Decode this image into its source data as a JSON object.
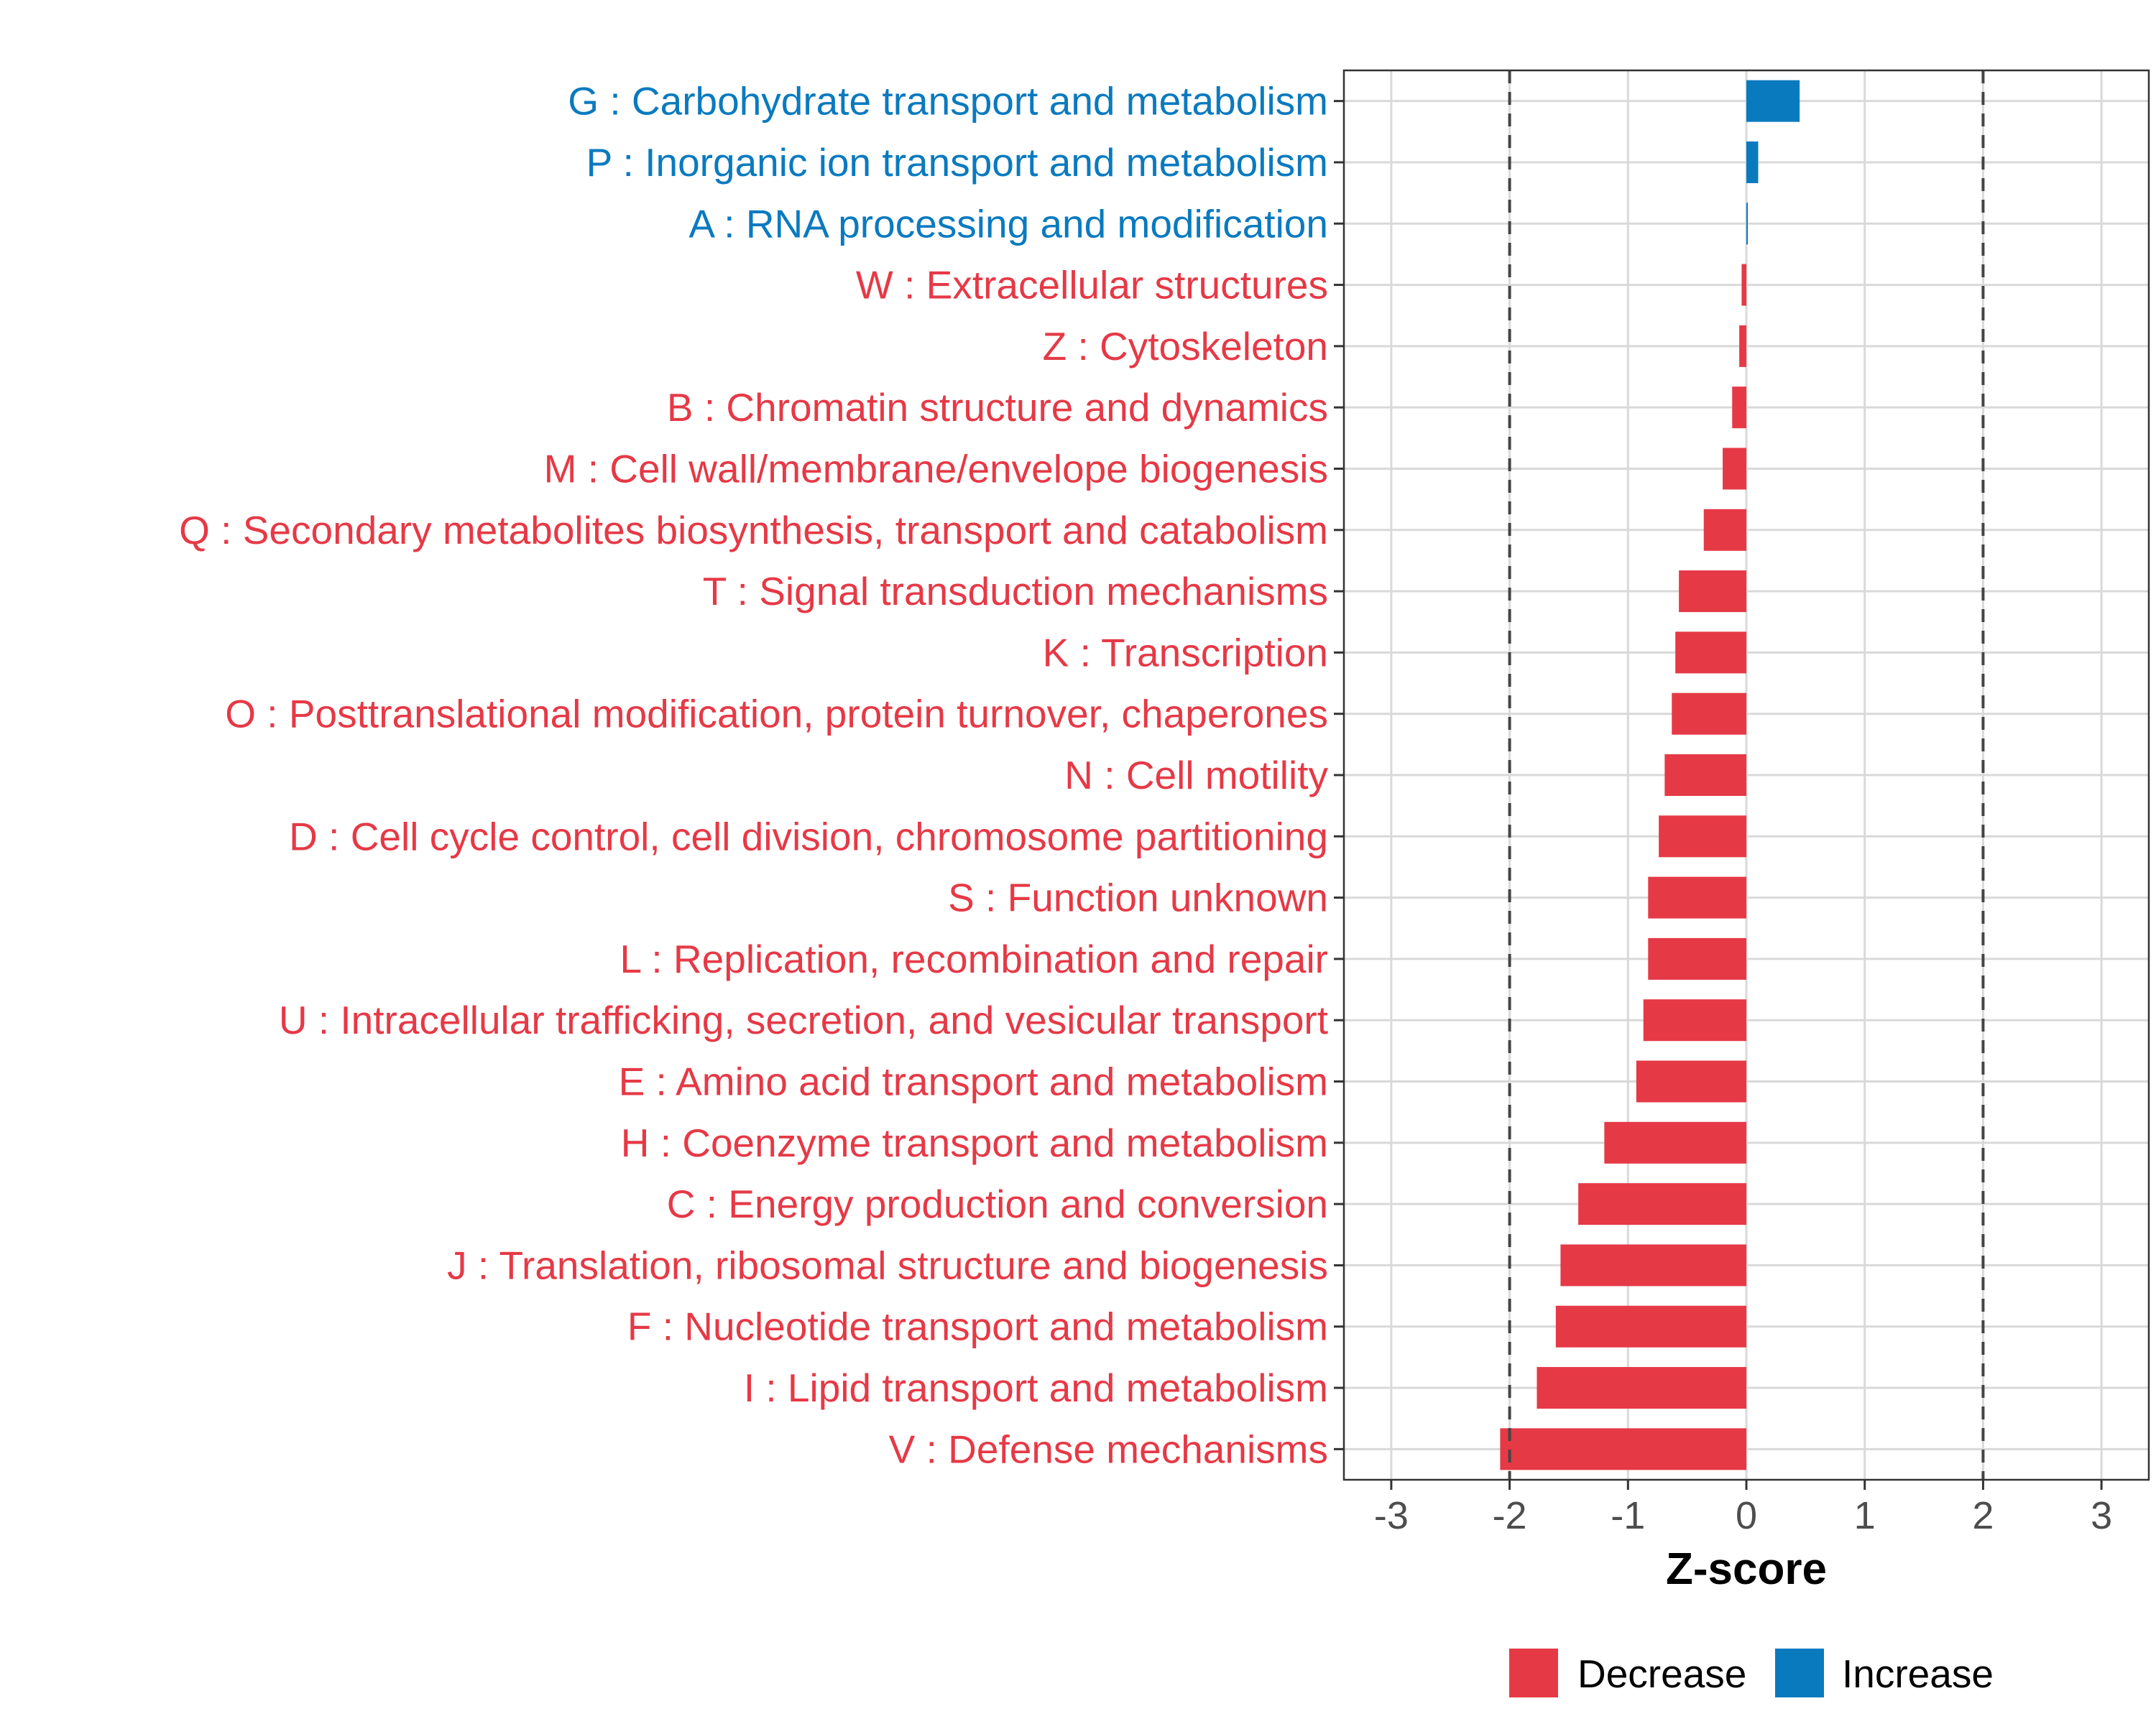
{
  "chart_data": {
    "type": "bar",
    "orientation": "horizontal",
    "title": "",
    "xlabel": "Z-score",
    "ylabel": "",
    "xlim": [
      -3.4,
      3.4
    ],
    "xticks": [
      "-3",
      "-2",
      "-1",
      "0",
      "1",
      "2",
      "3"
    ],
    "xtick_values": [
      -3,
      -2,
      -1,
      0,
      1,
      2,
      3
    ],
    "reference_lines": [
      -2,
      2
    ],
    "grid": true,
    "legend_position": "bottom",
    "colors": {
      "Decrease": "#e63946",
      "Increase": "#0a7abf"
    },
    "legend": [
      "Decrease",
      "Increase"
    ],
    "categories": [
      "G : Carbohydrate transport and metabolism",
      "P : Inorganic ion transport and metabolism",
      "A : RNA processing and modification",
      "W : Extracellular structures",
      "Z : Cytoskeleton",
      "B : Chromatin structure and dynamics",
      "M : Cell wall/membrane/envelope biogenesis",
      "Q : Secondary metabolites biosynthesis, transport and catabolism",
      "T : Signal transduction mechanisms",
      "K : Transcription",
      "O : Posttranslational modification, protein turnover, chaperones",
      "N : Cell motility",
      "D : Cell cycle control, cell division, chromosome partitioning",
      "S : Function unknown",
      "L : Replication, recombination and repair",
      "U : Intracellular trafficking, secretion, and vesicular transport",
      "E : Amino acid transport and metabolism",
      "H : Coenzyme transport and metabolism",
      "C : Energy production and conversion",
      "J : Translation, ribosomal structure and biogenesis",
      "F : Nucleotide transport and metabolism",
      "I : Lipid transport and metabolism",
      "V : Defense mechanisms"
    ],
    "values": [
      0.45,
      0.1,
      0.01,
      -0.04,
      -0.06,
      -0.12,
      -0.2,
      -0.36,
      -0.57,
      -0.6,
      -0.63,
      -0.69,
      -0.74,
      -0.83,
      -0.83,
      -0.87,
      -0.93,
      -1.2,
      -1.42,
      -1.57,
      -1.61,
      -1.77,
      -2.08
    ],
    "groups": [
      "Increase",
      "Increase",
      "Increase",
      "Decrease",
      "Decrease",
      "Decrease",
      "Decrease",
      "Decrease",
      "Decrease",
      "Decrease",
      "Decrease",
      "Decrease",
      "Decrease",
      "Decrease",
      "Decrease",
      "Decrease",
      "Decrease",
      "Decrease",
      "Decrease",
      "Decrease",
      "Decrease",
      "Decrease",
      "Decrease"
    ]
  }
}
